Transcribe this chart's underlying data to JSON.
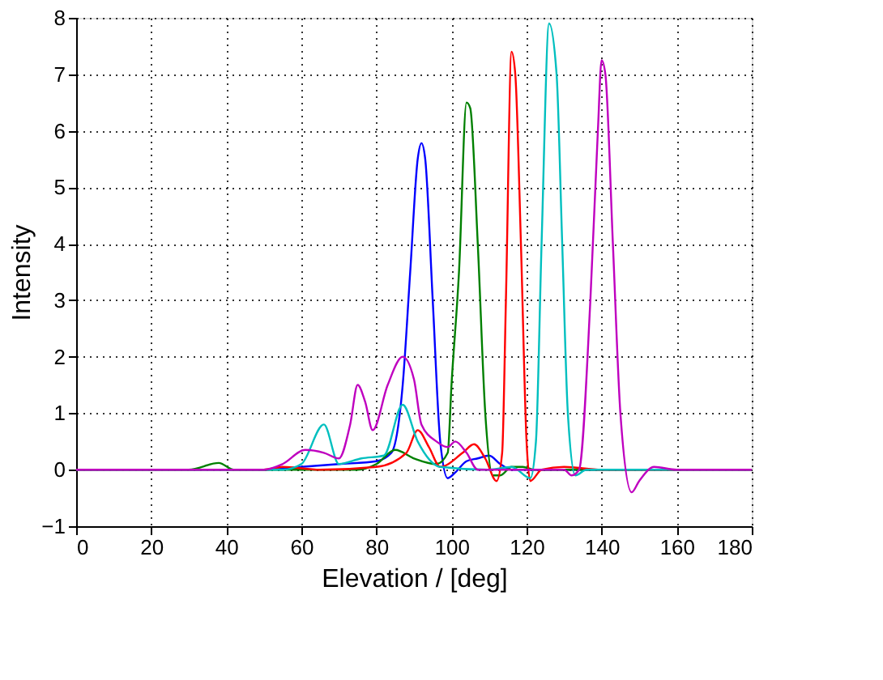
{
  "chart_data": {
    "type": "line",
    "xlabel": "Elevation / [deg]",
    "ylabel": "Intensity",
    "xlim": [
      0,
      180
    ],
    "ylim": [
      -1,
      8
    ],
    "xticks": [
      0,
      20,
      40,
      60,
      80,
      100,
      120,
      140,
      160,
      180
    ],
    "yticks": [
      -1,
      0,
      1,
      2,
      3,
      4,
      5,
      6,
      7,
      8
    ],
    "grid": true,
    "line_style": "solid",
    "legend": false,
    "series": [
      {
        "color": "#0000ff",
        "x": [
          0,
          50,
          60,
          70,
          80,
          84,
          87,
          89,
          91,
          92,
          93,
          95,
          97,
          99,
          101,
          104,
          107,
          110,
          113,
          116,
          180
        ],
        "values": [
          0,
          0,
          0.05,
          0.1,
          0.15,
          0.3,
          1.5,
          3.5,
          5.5,
          5.78,
          5.5,
          3,
          0.5,
          -0.15,
          -0.05,
          0.15,
          0.2,
          0.25,
          0.1,
          0,
          0
        ]
      },
      {
        "color": "#008000",
        "x": [
          0,
          30,
          38,
          42,
          75,
          80,
          85,
          90,
          96,
          99,
          100,
          102,
          104,
          105,
          107,
          109,
          111,
          113,
          116,
          119,
          122,
          180
        ],
        "values": [
          0,
          0,
          0.12,
          0,
          0,
          0.1,
          0.35,
          0.2,
          0.1,
          0.3,
          1.5,
          3.5,
          6.5,
          6.4,
          4,
          1,
          -0.1,
          -0.1,
          0.05,
          0.05,
          0,
          0
        ]
      },
      {
        "color": "#ff0000",
        "x": [
          0,
          50,
          55,
          65,
          80,
          88,
          91,
          94,
          97,
          103,
          106,
          109,
          112,
          113.5,
          114.5,
          116,
          117,
          118.5,
          120,
          121,
          124,
          130,
          140,
          180
        ],
        "values": [
          0,
          0,
          0.05,
          0,
          0.05,
          0.3,
          0.7,
          0.4,
          0.05,
          0.3,
          0.45,
          0.2,
          -0.2,
          0.3,
          3,
          7.4,
          7,
          4,
          0.5,
          -0.2,
          0,
          0.05,
          0,
          0
        ]
      },
      {
        "color": "#00bfbf",
        "x": [
          0,
          55,
          60,
          66,
          70,
          76,
          82,
          87,
          91,
          97,
          110,
          116,
          121,
          122.5,
          124,
          126,
          128,
          129.5,
          131,
          133,
          136,
          180
        ],
        "values": [
          0,
          0,
          0.1,
          0.8,
          0.1,
          0.2,
          0.25,
          1.15,
          0.5,
          0.05,
          0,
          0.05,
          -0.15,
          0.5,
          4,
          7.9,
          7,
          4,
          1,
          -0.1,
          0,
          0
        ]
      },
      {
        "color": "#bf00bf",
        "x": [
          0,
          50,
          55,
          61,
          66,
          70,
          73,
          75,
          77,
          79,
          83,
          87,
          90,
          92,
          96,
          99,
          101,
          104,
          107,
          130,
          132,
          134,
          137,
          139,
          140,
          141,
          143,
          145,
          148,
          150,
          154,
          160,
          180
        ],
        "values": [
          0,
          0,
          0.1,
          0.35,
          0.3,
          0.2,
          0.8,
          1.5,
          1.2,
          0.7,
          1.5,
          2.0,
          1.6,
          0.8,
          0.5,
          0.4,
          0.5,
          0.3,
          0,
          0,
          -0.1,
          0,
          3,
          6,
          7.25,
          7,
          4,
          1,
          -0.4,
          -0.2,
          0.05,
          0,
          0
        ]
      }
    ]
  }
}
